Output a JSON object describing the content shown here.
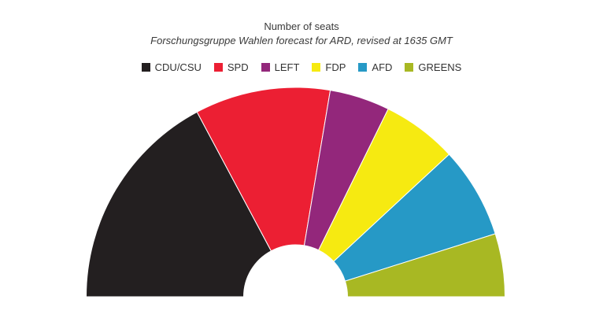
{
  "chart_data": {
    "type": "pie",
    "variant": "semicircle-parliament",
    "title": "Number of seats",
    "subtitle": "Forschungsgruppe Wahlen forecast for ARD, revised at 1635 GMT",
    "legend_position": "top-center",
    "series": [
      {
        "name": "CDU/CSU",
        "value": 237,
        "color": "#231f20"
      },
      {
        "name": "SPD",
        "value": 144,
        "color": "#ec1f33"
      },
      {
        "name": "LEFT",
        "value": 64,
        "color": "#93277b"
      },
      {
        "name": "FDP",
        "value": 80,
        "color": "#f6ea11"
      },
      {
        "name": "AFD",
        "value": 97,
        "color": "#2699c6"
      },
      {
        "name": "GREENS",
        "value": 67,
        "color": "#a8b823"
      }
    ]
  }
}
